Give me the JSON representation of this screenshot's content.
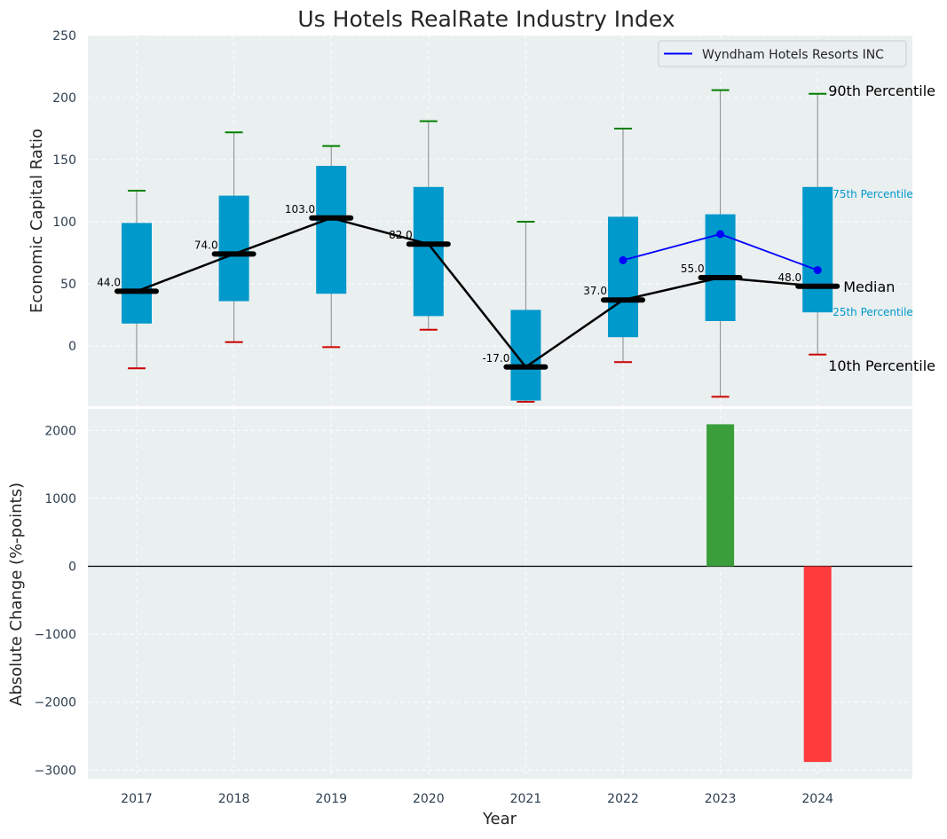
{
  "chart_data": [
    {
      "panel": "top",
      "type": "box",
      "title": "Us Hotels RealRate Industry Index",
      "ylabel": "Economic Capital Ratio",
      "ylim": [
        -50,
        250
      ],
      "yticks": [
        0,
        50,
        100,
        150,
        200,
        250
      ],
      "grid": true,
      "legend_position": "top-right",
      "categories": [
        "2017",
        "2018",
        "2019",
        "2020",
        "2021",
        "2022",
        "2023",
        "2024"
      ],
      "p10": [
        -18,
        3,
        -1,
        13,
        -45,
        -13,
        -41,
        -7
      ],
      "p25": [
        18,
        36,
        42,
        24,
        -44,
        7,
        20,
        27
      ],
      "median": [
        44,
        74,
        103,
        82,
        -17,
        37,
        55,
        48
      ],
      "p75": [
        99,
        121,
        145,
        128,
        29,
        104,
        106,
        128
      ],
      "p90": [
        125,
        172,
        161,
        181,
        100,
        175,
        206,
        203
      ],
      "median_labels": [
        "44.0",
        "74.0",
        "103.0",
        "82.0",
        "-17.0",
        "37.0",
        "55.0",
        "48.0"
      ],
      "series": [
        {
          "name": "Wyndham Hotels Resorts INC",
          "x": [
            "2022",
            "2023",
            "2024"
          ],
          "values": [
            69,
            90,
            61
          ],
          "color": "#0000ff"
        }
      ],
      "annotations": {
        "p90": "90th Percentile",
        "p75": "75th Percentile",
        "median": "Median",
        "p25": "25th Percentile",
        "p10": "10th Percentile"
      },
      "colors": {
        "box": "#0099cc",
        "median_line": "#000000",
        "whisker_top": "#008000",
        "whisker_bottom": "#cc0000",
        "background": "#eaeff0"
      }
    },
    {
      "panel": "bottom",
      "type": "bar",
      "xlabel": "Year",
      "ylabel": "Absolute Change (%-points)",
      "ylim": [
        -3100,
        2350
      ],
      "yticks": [
        -3000,
        -2000,
        -1000,
        0,
        1000,
        2000
      ],
      "ytick_labels": [
        "−3000",
        "−2000",
        "−1000",
        "0",
        "1000",
        "2000"
      ],
      "grid": true,
      "categories": [
        "2017",
        "2018",
        "2019",
        "2020",
        "2021",
        "2022",
        "2023",
        "2024"
      ],
      "values": [
        null,
        null,
        null,
        null,
        null,
        null,
        2090,
        -2880
      ],
      "colors": {
        "positive": "#3a9e3a",
        "negative": "#ff3b3b",
        "zero_line": "#000000",
        "background": "#eaeff0"
      }
    }
  ]
}
